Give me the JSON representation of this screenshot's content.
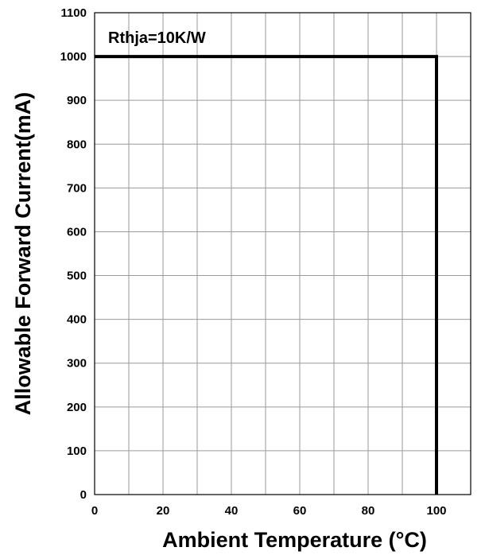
{
  "chart_data": {
    "type": "line",
    "title": "",
    "xlabel": "Ambient Temperature (°C)",
    "ylabel": "Allowable Forward Current(mA)",
    "xlim": [
      0,
      110
    ],
    "ylim": [
      0,
      1100
    ],
    "x_ticks": [
      0,
      20,
      40,
      60,
      80,
      100
    ],
    "x_tick_labels": [
      "0",
      "20",
      "40",
      "60",
      "80",
      "100"
    ],
    "y_ticks": [
      0,
      100,
      200,
      300,
      400,
      500,
      600,
      700,
      800,
      900,
      1000,
      1100
    ],
    "y_tick_labels": [
      "0",
      "100",
      "200",
      "300",
      "400",
      "500",
      "600",
      "700",
      "800",
      "900",
      "1000",
      "1100"
    ],
    "x_grid_step": 10,
    "y_grid_step": 100,
    "grid": true,
    "legend": "none",
    "annotations": [
      {
        "text": "Rthja=10K/W"
      }
    ],
    "series": [
      {
        "color": "#000000",
        "points": [
          {
            "x": 0,
            "y": 1000
          },
          {
            "x": 100,
            "y": 1000
          },
          {
            "x": 100,
            "y": 0
          }
        ]
      }
    ]
  }
}
